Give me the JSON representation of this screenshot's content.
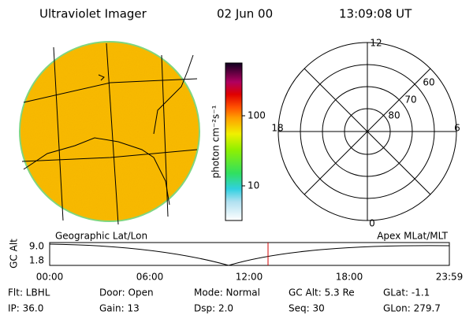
{
  "header": {
    "instrument": "Ultraviolet Imager",
    "date": "02 Jun 00",
    "time": "13:09:08 UT"
  },
  "colorbar": {
    "unit_label": "photon cm⁻²s⁻¹",
    "labels": [
      "100",
      "10"
    ]
  },
  "polar_grid": {
    "mlt_labels": [
      "12",
      "18",
      "6",
      "0"
    ],
    "lat_labels": [
      "60",
      "70",
      "80"
    ]
  },
  "orbit_plot": {
    "left_title": "Geographic Lat/Lon",
    "right_title": "Apex MLat/MLT",
    "y_label": "GC Alt",
    "y_labels": [
      "9.0",
      "1.8"
    ],
    "time_labels": [
      "00:00",
      "06:00",
      "12:00",
      "18:00",
      "23:59"
    ]
  },
  "footer": {
    "rows": [
      [
        "Flt: LBHL",
        "Door: Open",
        "Mode: Normal",
        "GC Alt: 5.3 Re",
        "GLat: -1.1"
      ],
      [
        "IP: 36.0",
        "Gain: 13",
        "Dsp: 2.0",
        "Seq: 30",
        "GLon: 279.7"
      ]
    ]
  }
}
